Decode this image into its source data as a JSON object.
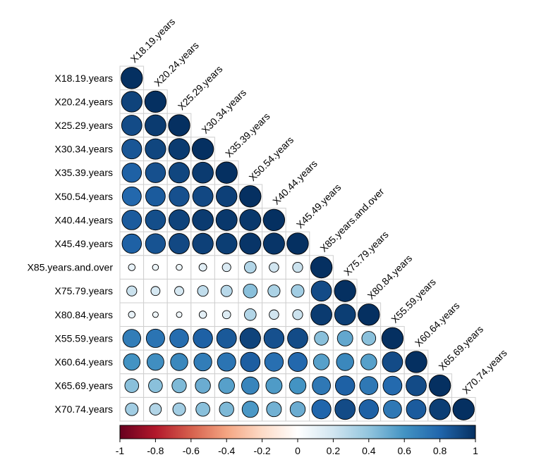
{
  "chart_data": {
    "type": "heatmap",
    "variables": [
      "X18.19.years",
      "X20.24.years",
      "X25.29.years",
      "X30.34.years",
      "X35.39.years",
      "X50.54.years",
      "X40.44.years",
      "X45.49.years",
      "X85.years.and.over",
      "X75.79.years",
      "X80.84.years",
      "X55.59.years",
      "X60.64.years",
      "X65.69.years",
      "X70.74.years"
    ],
    "matrix": [
      [
        1.0
      ],
      [
        0.93,
        1.0
      ],
      [
        0.9,
        0.96,
        1.0
      ],
      [
        0.86,
        0.92,
        0.96,
        1.0
      ],
      [
        0.82,
        0.88,
        0.92,
        0.96,
        1.0
      ],
      [
        0.79,
        0.84,
        0.88,
        0.91,
        0.94,
        1.0
      ],
      [
        0.84,
        0.89,
        0.93,
        0.96,
        0.97,
        0.97,
        1.0
      ],
      [
        0.82,
        0.87,
        0.91,
        0.94,
        0.95,
        0.98,
        0.98,
        1.0
      ],
      [
        0.1,
        0.08,
        0.08,
        0.13,
        0.16,
        0.3,
        0.2,
        0.22,
        1.0
      ],
      [
        0.22,
        0.18,
        0.18,
        0.25,
        0.28,
        0.42,
        0.32,
        0.35,
        0.9,
        1.0
      ],
      [
        0.1,
        0.07,
        0.07,
        0.12,
        0.15,
        0.3,
        0.2,
        0.22,
        0.96,
        0.95,
        1.0
      ],
      [
        0.7,
        0.74,
        0.77,
        0.82,
        0.85,
        0.93,
        0.88,
        0.9,
        0.42,
        0.52,
        0.42,
        1.0
      ],
      [
        0.6,
        0.62,
        0.65,
        0.7,
        0.74,
        0.83,
        0.76,
        0.79,
        0.55,
        0.65,
        0.55,
        0.9,
        1.0
      ],
      [
        0.42,
        0.42,
        0.45,
        0.5,
        0.55,
        0.66,
        0.57,
        0.6,
        0.72,
        0.82,
        0.72,
        0.78,
        0.9,
        1.0
      ],
      [
        0.35,
        0.3,
        0.35,
        0.42,
        0.45,
        0.58,
        0.48,
        0.5,
        0.8,
        0.9,
        0.82,
        0.72,
        0.84,
        0.95,
        1.0
      ]
    ],
    "colorbar": {
      "ticks": [
        -1,
        -0.8,
        -0.6,
        -0.4,
        -0.2,
        0,
        0.2,
        0.4,
        0.6,
        0.8,
        1
      ],
      "tick_labels": [
        "-1",
        "-0.8",
        "-0.6",
        "-0.4",
        "-0.2",
        "0",
        "0.2",
        "0.4",
        "0.6",
        "0.8",
        "1"
      ],
      "colors": [
        "#67001f",
        "#b2182b",
        "#d6604d",
        "#f4a582",
        "#fddbc7",
        "#ffffff",
        "#d1e5f0",
        "#92c5de",
        "#4393c3",
        "#2166ac",
        "#053061"
      ]
    },
    "legend_placement": "bottom"
  }
}
